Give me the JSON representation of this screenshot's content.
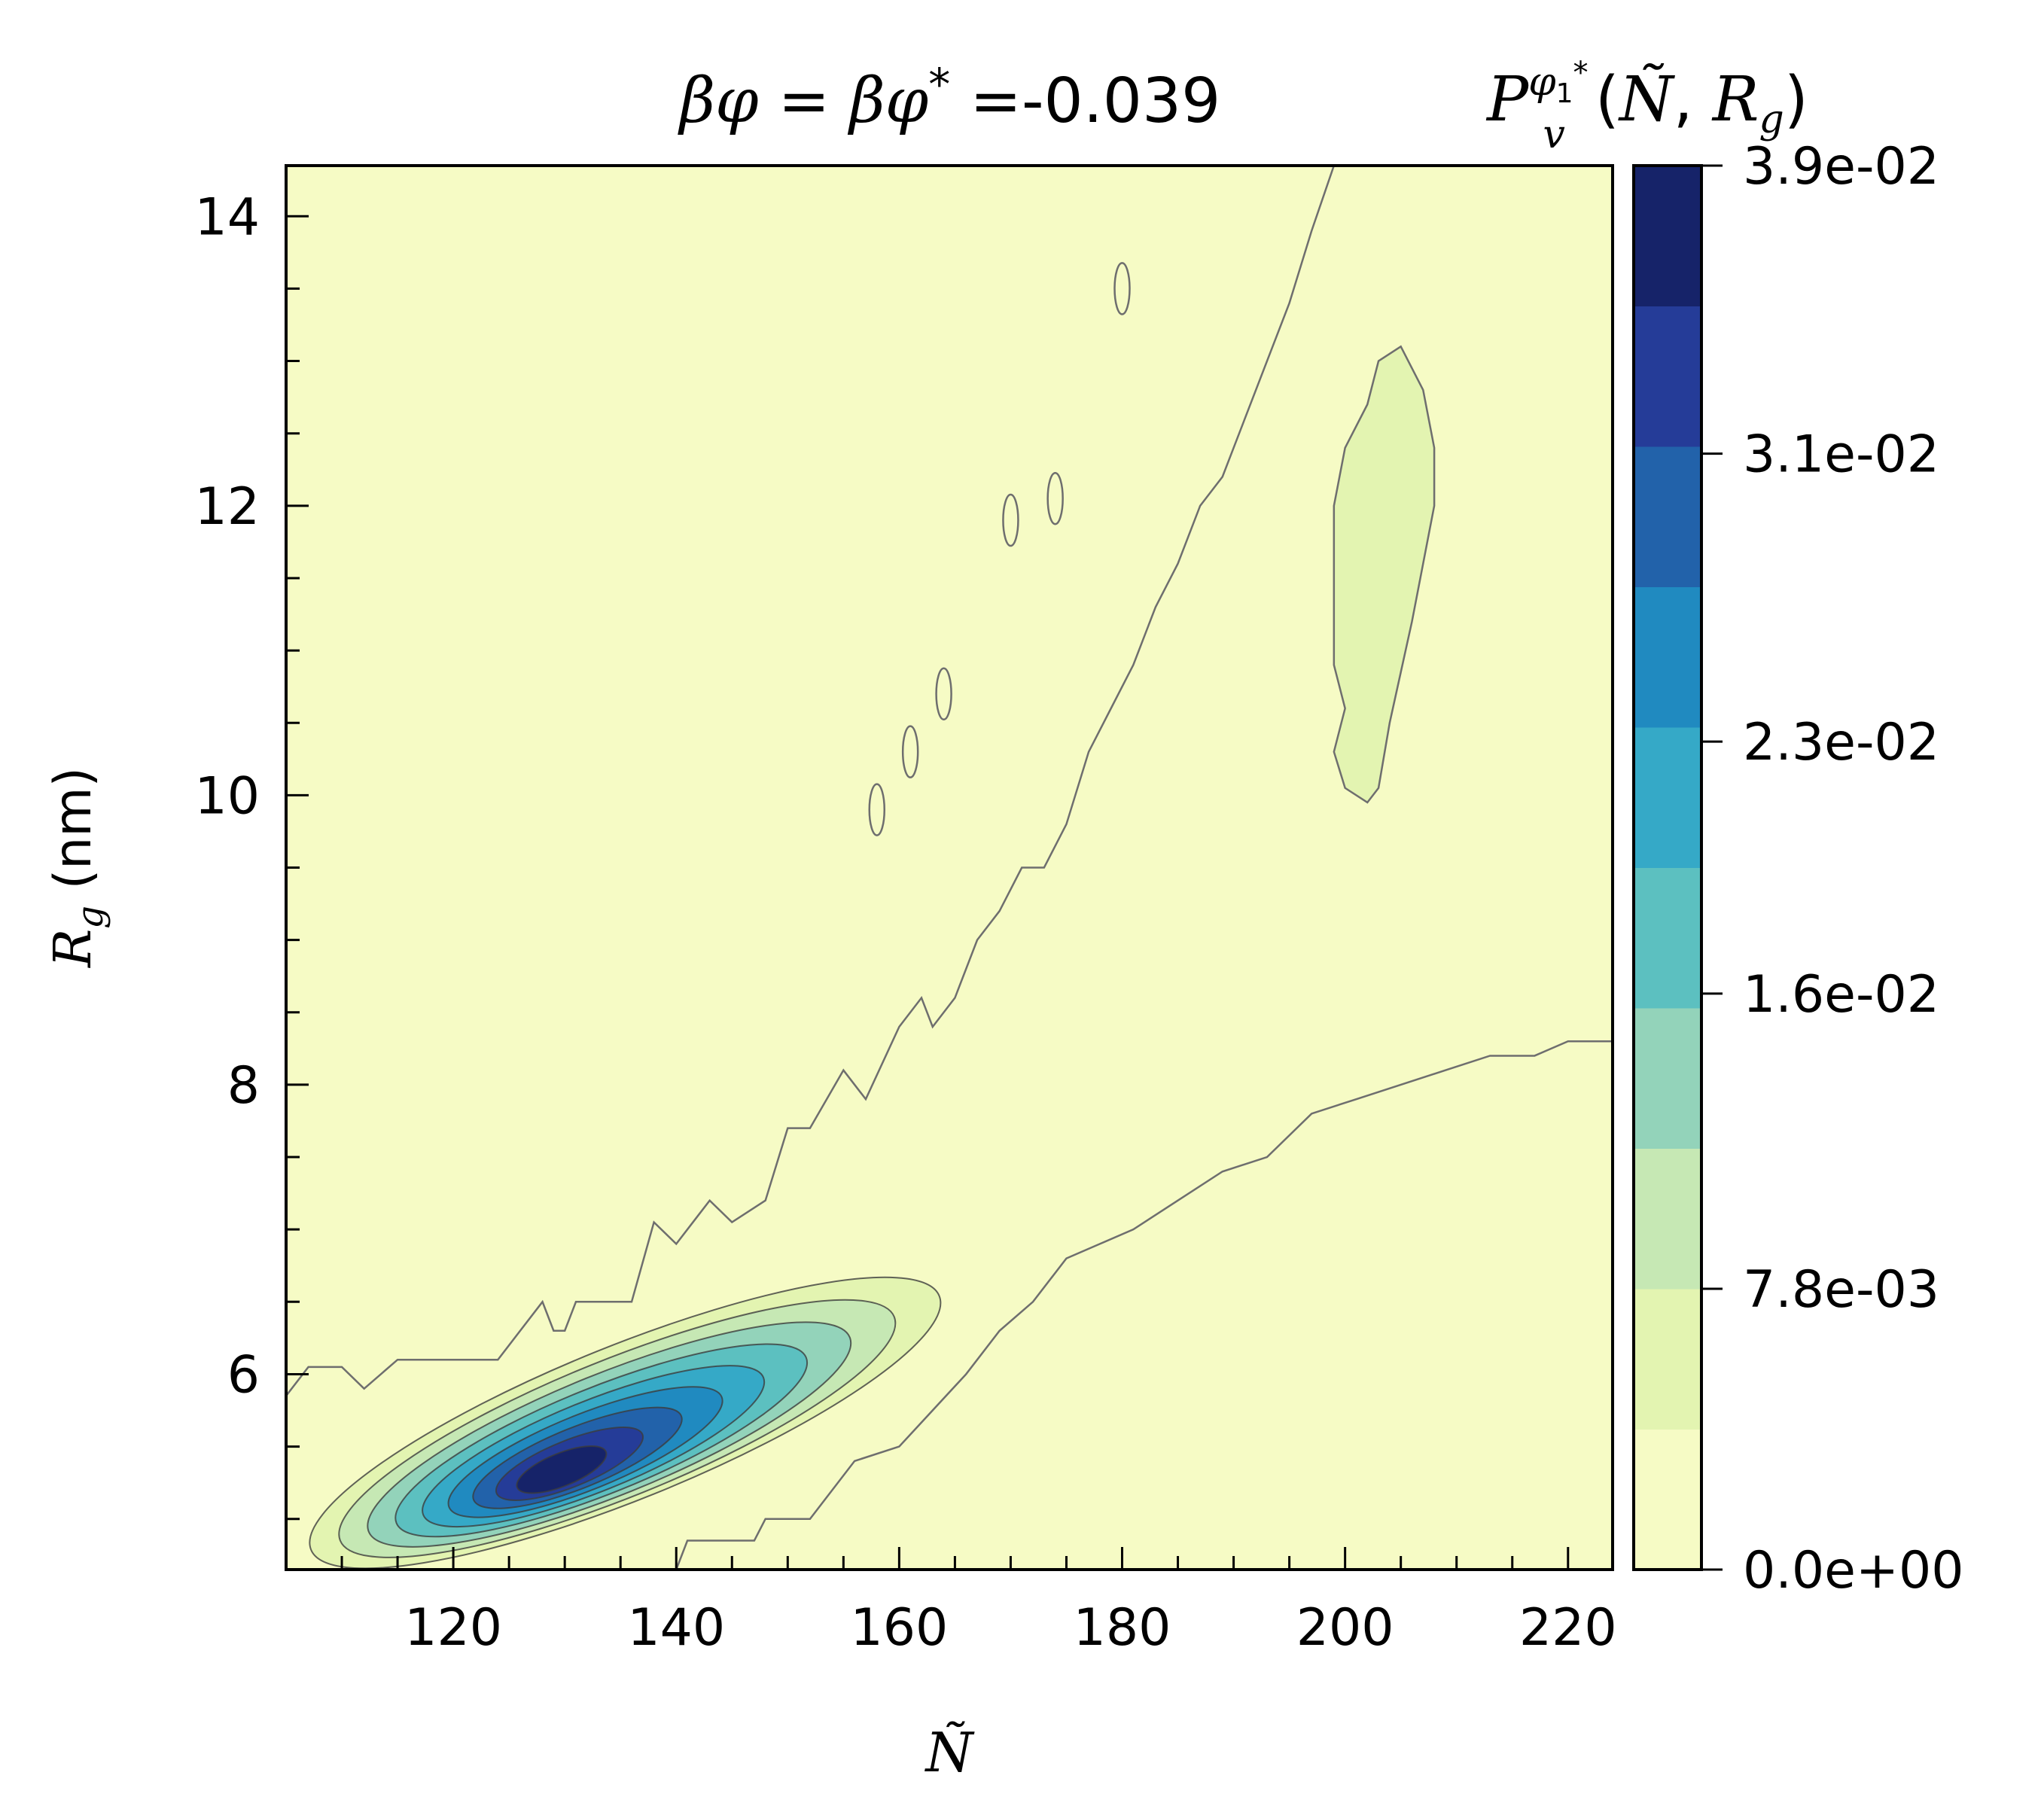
{
  "chart_data": {
    "type": "contour",
    "title": "βφ = βφ* = -0.039",
    "title_parts": {
      "lhs": "βφ",
      "eq1": " = ",
      "mid": "βφ",
      "star": "*",
      "eq2": " =-0.039"
    },
    "xlabel": "Ñ",
    "ylabel": "R_g (nm)",
    "ylabel_parts": {
      "main": "R",
      "sub": "g",
      "unit": " (nm)"
    },
    "xlim": [
      105,
      224
    ],
    "ylim": [
      4.65,
      14.35
    ],
    "x_ticks": [
      120,
      140,
      160,
      180,
      200,
      220
    ],
    "x_tick_labels": [
      "120",
      "140",
      "160",
      "180",
      "200",
      "220"
    ],
    "x_minor_step": 5,
    "y_ticks": [
      6,
      8,
      10,
      12,
      14
    ],
    "y_tick_labels": [
      "6",
      "8",
      "10",
      "12",
      "14"
    ],
    "y_minor_step": 0.5,
    "colorbar": {
      "label": "P_v^{φ1*}(Ñ, R_g)",
      "label_parts": {
        "P": "P",
        "sup_phi": "φ",
        "sup_phi_sub": "1",
        "sup_star": "*",
        "sub_v": "v",
        "args_open": "(",
        "N": "Ñ",
        "comma": ", ",
        "R": "R",
        "R_sub": "g",
        "args_close": ")"
      },
      "min": 0.0,
      "max": 0.039,
      "levels": 10,
      "tick_values": [
        0.0,
        0.0078,
        0.016,
        0.023,
        0.031,
        0.039
      ],
      "tick_labels": [
        "0.0e+00",
        "7.8e-03",
        "1.6e-02",
        "2.3e-02",
        "3.1e-02",
        "3.9e-02"
      ],
      "colors": [
        "#f6fbc5",
        "#e3f4b1",
        "#c6e8b4",
        "#93d3ba",
        "#5cc0c0",
        "#35a9c7",
        "#208ac0",
        "#2262aa",
        "#253c98",
        "#162369"
      ]
    },
    "regions": {
      "main_peak": {
        "center": [
          129,
          5.3
        ],
        "max_value": 0.039
      },
      "secondary_peak": {
        "center": [
          204,
          11.5
        ],
        "max_value": 0.006
      }
    },
    "contour_lines": {
      "upper_boundary": [
        [
          105,
          5.85
        ],
        [
          107,
          6.05
        ],
        [
          110,
          6.05
        ],
        [
          112,
          5.9
        ],
        [
          115,
          6.1
        ],
        [
          124,
          6.1
        ],
        [
          126,
          6.3
        ],
        [
          128,
          6.5
        ],
        [
          129,
          6.3
        ],
        [
          130,
          6.3
        ],
        [
          131,
          6.5
        ],
        [
          136,
          6.5
        ],
        [
          138,
          7.05
        ],
        [
          140,
          6.9
        ],
        [
          142,
          7.1
        ],
        [
          143,
          7.2
        ],
        [
          145,
          7.05
        ],
        [
          148,
          7.2
        ],
        [
          150,
          7.7
        ],
        [
          152,
          7.7
        ],
        [
          155,
          8.1
        ],
        [
          157,
          7.9
        ],
        [
          160,
          8.4
        ],
        [
          162,
          8.6
        ],
        [
          163,
          8.4
        ],
        [
          165,
          8.6
        ],
        [
          167,
          9.0
        ],
        [
          169,
          9.2
        ],
        [
          171,
          9.5
        ],
        [
          173,
          9.5
        ],
        [
          175,
          9.8
        ],
        [
          177,
          10.3
        ],
        [
          179,
          10.6
        ],
        [
          181,
          10.9
        ],
        [
          183,
          11.3
        ],
        [
          185,
          11.6
        ],
        [
          187,
          12.0
        ],
        [
          189,
          12.2
        ],
        [
          191,
          12.6
        ],
        [
          193,
          13.0
        ],
        [
          195,
          13.4
        ],
        [
          197,
          13.9
        ],
        [
          199,
          14.35
        ]
      ],
      "lower_boundary": [
        [
          140,
          4.65
        ],
        [
          141,
          4.85
        ],
        [
          147,
          4.85
        ],
        [
          148,
          5.0
        ],
        [
          152,
          5.0
        ],
        [
          153,
          5.1
        ],
        [
          156,
          5.4
        ],
        [
          160,
          5.5
        ],
        [
          163,
          5.75
        ],
        [
          166,
          6.0
        ],
        [
          169,
          6.3
        ],
        [
          172,
          6.5
        ],
        [
          175,
          6.8
        ],
        [
          178,
          6.9
        ],
        [
          181,
          7.0
        ],
        [
          185,
          7.2
        ],
        [
          189,
          7.4
        ],
        [
          193,
          7.5
        ],
        [
          197,
          7.8
        ],
        [
          201,
          7.9
        ],
        [
          205,
          8.0
        ],
        [
          209,
          8.1
        ],
        [
          213,
          8.2
        ],
        [
          217,
          8.2
        ],
        [
          220,
          8.3
        ],
        [
          224,
          8.3
        ]
      ],
      "secondary_island": [
        [
          199,
          10.3
        ],
        [
          200,
          10.05
        ],
        [
          202,
          9.95
        ],
        [
          203,
          10.05
        ],
        [
          204,
          10.5
        ],
        [
          205,
          10.85
        ],
        [
          206,
          11.2
        ],
        [
          207,
          11.6
        ],
        [
          208,
          12.0
        ],
        [
          208,
          12.4
        ],
        [
          207,
          12.8
        ],
        [
          205,
          13.1
        ],
        [
          203,
          13.0
        ],
        [
          202,
          12.7
        ],
        [
          200,
          12.4
        ],
        [
          199,
          12.0
        ],
        [
          199,
          11.4
        ],
        [
          199,
          10.9
        ],
        [
          200,
          10.6
        ]
      ],
      "small_loops": [
        [
          170,
          11.9
        ],
        [
          174,
          12.05
        ],
        [
          158,
          9.9
        ],
        [
          161,
          10.3
        ],
        [
          164,
          10.7
        ],
        [
          180,
          13.5
        ]
      ]
    }
  }
}
